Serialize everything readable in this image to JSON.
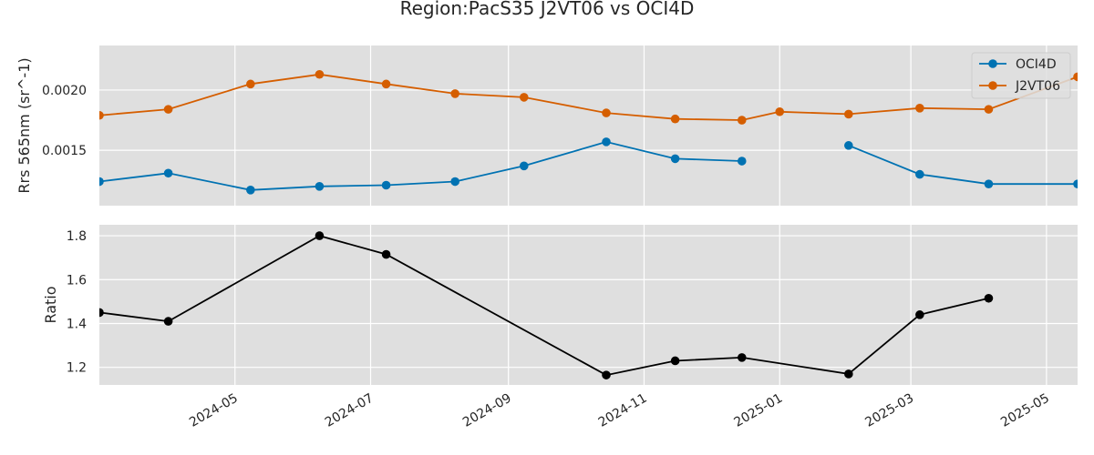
{
  "title": "Region:PacS35 J2VT06 vs OCI4D",
  "colors": {
    "oci": "#0072b2",
    "j2vt": "#d55e00",
    "ratio": "#000000",
    "panel_bg": "#dfdfdf",
    "grid": "#ffffff"
  },
  "x_tick_labels": [
    "2024-05",
    "2024-07",
    "2024-09",
    "2024-11",
    "2025-01",
    "2025-03",
    "2025-05"
  ],
  "chart_data": [
    {
      "type": "line",
      "ylabel": "Rrs 565nm (sr^-1)",
      "xlim": [
        "2024-03-01",
        "2025-05-15"
      ],
      "ylim": [
        0.00104,
        0.00237
      ],
      "yticks": [
        0.0015,
        0.002
      ],
      "ytick_labels": [
        "0.0015",
        "0.0020"
      ],
      "legend_position": "top-right",
      "grid": true,
      "series": [
        {
          "name": "OCI4D",
          "color": "#0072b2",
          "points": [
            [
              "2024-03-01",
              0.00124
            ],
            [
              "2024-04-01",
              0.00131
            ],
            [
              "2024-05-08",
              0.00117
            ],
            [
              "2024-06-08",
              0.0012
            ],
            [
              "2024-07-08",
              0.00121
            ],
            [
              "2024-08-08",
              0.00124
            ],
            [
              "2024-09-08",
              0.00137
            ],
            [
              "2024-10-15",
              0.00157
            ],
            [
              "2024-11-15",
              0.00143
            ],
            [
              "2024-12-15",
              0.00141
            ],
            [
              "2025-01-15",
              null
            ],
            [
              "2025-02-01",
              0.00154
            ],
            [
              "2025-03-05",
              0.0013
            ],
            [
              "2025-04-05",
              0.00122
            ],
            [
              "2025-05-15",
              0.00122
            ]
          ]
        },
        {
          "name": "J2VT06",
          "color": "#d55e00",
          "points": [
            [
              "2024-03-01",
              0.00179
            ],
            [
              "2024-04-01",
              0.00184
            ],
            [
              "2024-05-08",
              0.00205
            ],
            [
              "2024-06-08",
              0.00213
            ],
            [
              "2024-07-08",
              0.00205
            ],
            [
              "2024-08-08",
              0.00197
            ],
            [
              "2024-09-08",
              0.00194
            ],
            [
              "2024-10-15",
              0.00181
            ],
            [
              "2024-11-15",
              0.00176
            ],
            [
              "2024-12-15",
              0.00175
            ],
            [
              "2025-01-01",
              0.00182
            ],
            [
              "2025-02-01",
              0.0018
            ],
            [
              "2025-03-05",
              0.00185
            ],
            [
              "2025-04-05",
              0.00184
            ],
            [
              "2025-05-15",
              0.00211
            ]
          ]
        }
      ]
    },
    {
      "type": "line",
      "ylabel": "Ratio",
      "xlim": [
        "2024-03-01",
        "2025-05-15"
      ],
      "ylim": [
        1.12,
        1.85
      ],
      "yticks": [
        1.2,
        1.4,
        1.6,
        1.8
      ],
      "ytick_labels": [
        "1.2",
        "1.4",
        "1.6",
        "1.8"
      ],
      "grid": true,
      "series": [
        {
          "color": "#000000",
          "points": [
            [
              "2024-03-01",
              1.45
            ],
            [
              "2024-04-01",
              1.41
            ],
            [
              "2024-06-08",
              1.8
            ],
            [
              "2024-07-08",
              1.715
            ],
            [
              "2024-10-15",
              1.165
            ],
            [
              "2024-11-15",
              1.23
            ],
            [
              "2024-12-15",
              1.245
            ],
            [
              "2025-02-01",
              1.17
            ],
            [
              "2025-03-05",
              1.44
            ],
            [
              "2025-04-05",
              1.515
            ]
          ]
        }
      ]
    }
  ]
}
